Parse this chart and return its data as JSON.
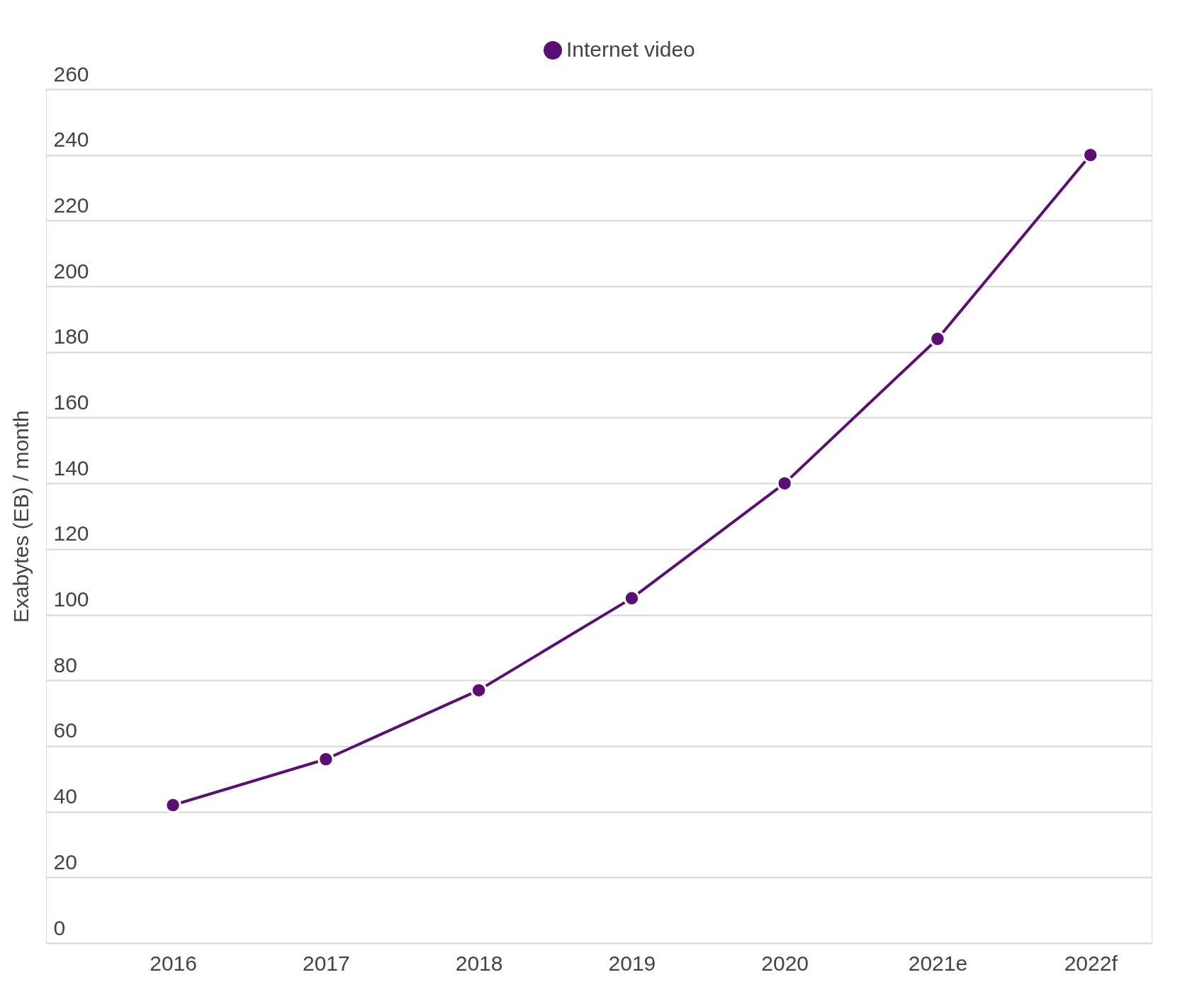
{
  "chart_data": {
    "type": "line",
    "ylabel": "Exabytes (EB) / month",
    "categories": [
      "2016",
      "2017",
      "2018",
      "2019",
      "2020",
      "2021e",
      "2022f"
    ],
    "series": [
      {
        "name": "Internet video",
        "color": "#5b0f74",
        "values": [
          42,
          56,
          77,
          105,
          140,
          184,
          240
        ]
      }
    ],
    "ylim": [
      0,
      260
    ],
    "yticks": [
      0,
      20,
      40,
      60,
      80,
      100,
      120,
      140,
      160,
      180,
      200,
      220,
      240,
      260
    ],
    "grid": "y",
    "legend": "top",
    "marker": "circle",
    "line_style": "solid"
  }
}
